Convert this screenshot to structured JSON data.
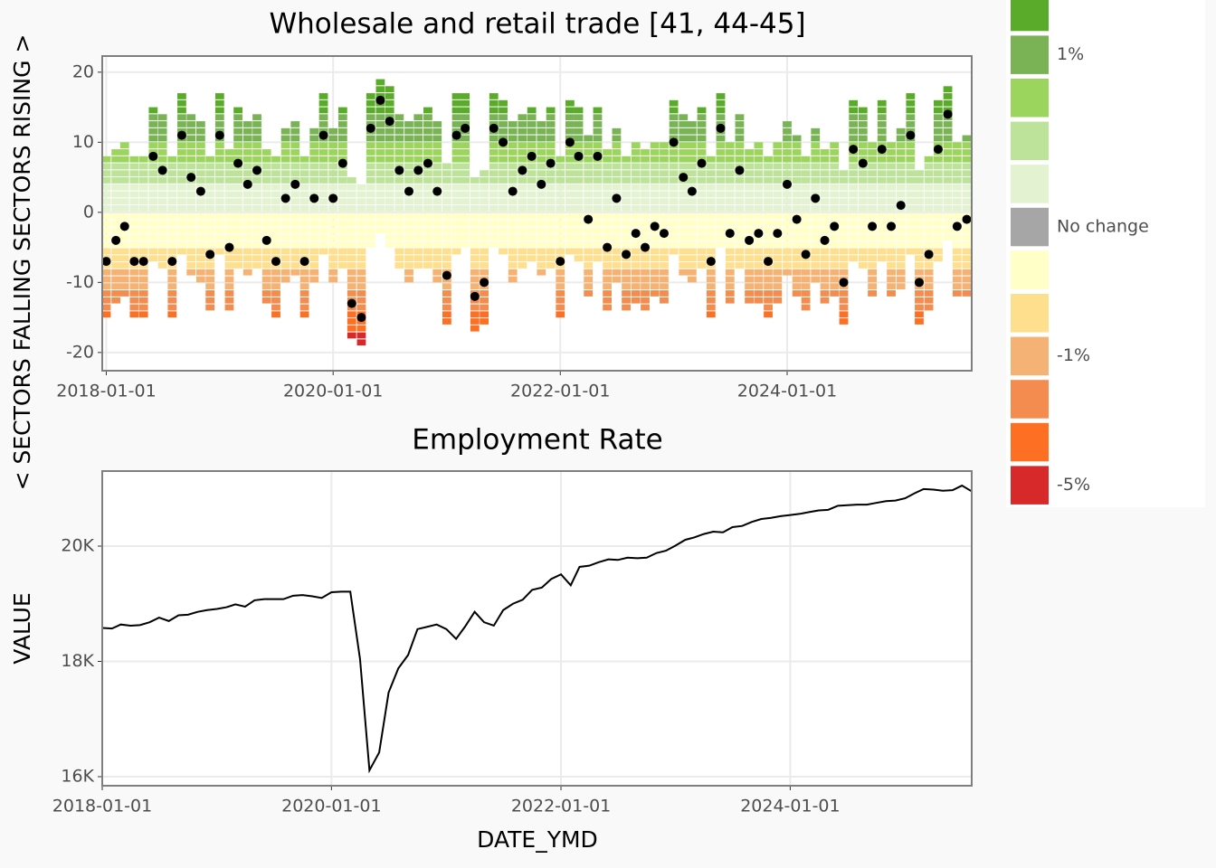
{
  "chart_data": [
    {
      "type": "tile",
      "title": "Wholesale and retail trade [41, 44-45]",
      "ylabel": "< SECTORS FALLING     SECTORS RISING >",
      "x": [
        "2018-01-01",
        "2018-02-01",
        "2018-03-01",
        "2018-04-01",
        "2018-05-01",
        "2018-06-01",
        "2018-07-01",
        "2018-08-01",
        "2018-09-01",
        "2018-10-01",
        "2018-11-01",
        "2018-12-01",
        "2019-01-01",
        "2019-02-01",
        "2019-03-01",
        "2019-04-01",
        "2019-05-01",
        "2019-06-01",
        "2019-07-01",
        "2019-08-01",
        "2019-09-01",
        "2019-10-01",
        "2019-11-01",
        "2019-12-01",
        "2020-01-01",
        "2020-02-01",
        "2020-03-01",
        "2020-04-01",
        "2020-05-01",
        "2020-06-01",
        "2020-07-01",
        "2020-08-01",
        "2020-09-01",
        "2020-10-01",
        "2020-11-01",
        "2020-12-01",
        "2021-01-01",
        "2021-02-01",
        "2021-03-01",
        "2021-04-01",
        "2021-05-01",
        "2021-06-01",
        "2021-07-01",
        "2021-08-01",
        "2021-09-01",
        "2021-10-01",
        "2021-11-01",
        "2021-12-01",
        "2022-01-01",
        "2022-02-01",
        "2022-03-01",
        "2022-04-01",
        "2022-05-01",
        "2022-06-01",
        "2022-07-01",
        "2022-08-01",
        "2022-09-01",
        "2022-10-01",
        "2022-11-01",
        "2022-12-01",
        "2023-01-01",
        "2023-02-01",
        "2023-03-01",
        "2023-04-01",
        "2023-05-01",
        "2023-06-01",
        "2023-07-01",
        "2023-08-01",
        "2023-09-01",
        "2023-10-01",
        "2023-11-01",
        "2023-12-01",
        "2024-01-01",
        "2024-02-01",
        "2024-03-01",
        "2024-04-01",
        "2024-05-01",
        "2024-06-01",
        "2024-07-01",
        "2024-08-01",
        "2024-09-01",
        "2024-10-01",
        "2024-11-01",
        "2024-12-01",
        "2025-01-01",
        "2025-02-01",
        "2025-03-01",
        "2025-04-01",
        "2025-05-01",
        "2025-06-01",
        "2025-07-01",
        "2025-08-01"
      ],
      "rising": [
        8,
        9,
        10,
        8,
        8,
        15,
        14,
        8,
        17,
        14,
        13,
        8,
        17,
        9,
        15,
        13,
        14,
        9,
        8,
        12,
        13,
        8,
        12,
        17,
        12,
        15,
        5,
        4,
        17,
        19,
        18,
        14,
        13,
        14,
        15,
        13,
        7,
        17,
        17,
        5,
        6,
        17,
        16,
        13,
        14,
        15,
        13,
        15,
        8,
        16,
        15,
        11,
        15,
        9,
        12,
        8,
        10,
        9,
        10,
        10,
        16,
        14,
        13,
        15,
        8,
        17,
        10,
        14,
        9,
        10,
        8,
        10,
        13,
        11,
        8,
        12,
        9,
        10,
        6,
        16,
        15,
        10,
        16,
        10,
        12,
        17,
        6,
        8,
        16,
        18,
        10,
        11
      ],
      "falling": [
        -15,
        -13,
        -12,
        -15,
        -15,
        -7,
        -8,
        -15,
        -6,
        -9,
        -10,
        -14,
        -6,
        -14,
        -8,
        -9,
        -8,
        -13,
        -15,
        -10,
        -9,
        -15,
        -10,
        -6,
        -10,
        -8,
        -18,
        -19,
        -5,
        -3,
        -5,
        -8,
        -10,
        -8,
        -8,
        -10,
        -16,
        -6,
        -5,
        -17,
        -16,
        -5,
        -6,
        -10,
        -8,
        -7,
        -9,
        -8,
        -15,
        -6,
        -7,
        -12,
        -7,
        -14,
        -10,
        -14,
        -13,
        -14,
        -12,
        -13,
        -6,
        -9,
        -10,
        -8,
        -15,
        -5,
        -13,
        -8,
        -13,
        -13,
        -15,
        -13,
        -9,
        -12,
        -14,
        -10,
        -13,
        -12,
        -16,
        -7,
        -8,
        -12,
        -7,
        -12,
        -11,
        -6,
        -16,
        -14,
        -7,
        -4,
        -12,
        -12
      ],
      "net": [
        -7,
        -4,
        -2,
        -7,
        -7,
        8,
        6,
        -7,
        11,
        5,
        3,
        -6,
        11,
        -5,
        7,
        4,
        6,
        -4,
        -7,
        2,
        4,
        -7,
        2,
        11,
        2,
        7,
        -13,
        -15,
        12,
        16,
        13,
        6,
        3,
        6,
        7,
        3,
        -9,
        11,
        12,
        -12,
        -10,
        12,
        10,
        3,
        6,
        8,
        4,
        7,
        -7,
        10,
        8,
        -1,
        8,
        -5,
        2,
        -6,
        -3,
        -5,
        -2,
        -3,
        10,
        5,
        3,
        7,
        -7,
        12,
        -3,
        6,
        -4,
        -3,
        -7,
        -3,
        4,
        -1,
        -6,
        2,
        -4,
        -2,
        -10,
        9,
        7,
        -2,
        9,
        -2,
        1,
        11,
        -10,
        -6,
        9,
        14,
        -2,
        -1
      ],
      "xlim": [
        "2017-12-19",
        "2025-08-17"
      ],
      "xticks": [
        "2018-01-01",
        "2020-01-01",
        "2022-01-01",
        "2024-01-01"
      ],
      "ylim": [
        -22.6,
        22.3
      ],
      "yticks": [
        -20,
        -10,
        0,
        10,
        20
      ],
      "grid": true,
      "legend": [
        {
          "color": "#5aab2a"
        },
        {
          "color": "#7ab356",
          "label": "1%"
        },
        {
          "color": "#9cd55e"
        },
        {
          "color": "#bde29a"
        },
        {
          "color": "#e3f2d0"
        },
        {
          "color": "#a6a6a6",
          "label": "No change"
        },
        {
          "color": "#ffffc8"
        },
        {
          "color": "#fddf8e"
        },
        {
          "color": "#f4b274",
          "label": "-1%"
        },
        {
          "color": "#f38c4e"
        },
        {
          "color": "#fd6f22"
        },
        {
          "color": "#d7282a",
          "label": "-5%"
        }
      ]
    },
    {
      "type": "line",
      "title": "Employment Rate",
      "xlabel": "DATE_YMD",
      "ylabel": "VALUE",
      "color": "#000000",
      "x": [
        "2018-01-01",
        "2018-02-01",
        "2018-03-01",
        "2018-04-01",
        "2018-05-01",
        "2018-06-01",
        "2018-07-01",
        "2018-08-01",
        "2018-09-01",
        "2018-10-01",
        "2018-11-01",
        "2018-12-01",
        "2019-01-01",
        "2019-02-01",
        "2019-03-01",
        "2019-04-01",
        "2019-05-01",
        "2019-06-01",
        "2019-07-01",
        "2019-08-01",
        "2019-09-01",
        "2019-10-01",
        "2019-11-01",
        "2019-12-01",
        "2020-01-01",
        "2020-02-01",
        "2020-03-01",
        "2020-04-01",
        "2020-05-01",
        "2020-06-01",
        "2020-07-01",
        "2020-08-01",
        "2020-09-01",
        "2020-10-01",
        "2020-11-01",
        "2020-12-01",
        "2021-01-01",
        "2021-02-01",
        "2021-03-01",
        "2021-04-01",
        "2021-05-01",
        "2021-06-01",
        "2021-07-01",
        "2021-08-01",
        "2021-09-01",
        "2021-10-01",
        "2021-11-01",
        "2021-12-01",
        "2022-01-01",
        "2022-02-01",
        "2022-03-01",
        "2022-04-01",
        "2022-05-01",
        "2022-06-01",
        "2022-07-01",
        "2022-08-01",
        "2022-09-01",
        "2022-10-01",
        "2022-11-01",
        "2022-12-01",
        "2023-01-01",
        "2023-02-01",
        "2023-03-01",
        "2023-04-01",
        "2023-05-01",
        "2023-06-01",
        "2023-07-01",
        "2023-08-01",
        "2023-09-01",
        "2023-10-01",
        "2023-11-01",
        "2023-12-01",
        "2024-01-01",
        "2024-02-01",
        "2024-03-01",
        "2024-04-01",
        "2024-05-01",
        "2024-06-01",
        "2024-07-01",
        "2024-08-01",
        "2024-09-01",
        "2024-10-01",
        "2024-11-01",
        "2024-12-01",
        "2025-01-01",
        "2025-02-01",
        "2025-03-01",
        "2025-04-01",
        "2025-05-01",
        "2025-06-01",
        "2025-07-01",
        "2025-08-01"
      ],
      "values": [
        18580,
        18570,
        18640,
        18620,
        18630,
        18680,
        18760,
        18700,
        18800,
        18810,
        18860,
        18890,
        18910,
        18940,
        18990,
        18950,
        19060,
        19080,
        19080,
        19080,
        19140,
        19150,
        19130,
        19100,
        19200,
        19210,
        19210,
        18040,
        16110,
        16420,
        17460,
        17880,
        18110,
        18560,
        18600,
        18640,
        18560,
        18390,
        18600,
        18860,
        18680,
        18620,
        18890,
        19000,
        19070,
        19240,
        19280,
        19430,
        19510,
        19320,
        19640,
        19660,
        19720,
        19770,
        19760,
        19800,
        19790,
        19800,
        19880,
        19920,
        20010,
        20110,
        20150,
        20210,
        20250,
        20240,
        20330,
        20350,
        20420,
        20470,
        20490,
        20520,
        20540,
        20560,
        20590,
        20620,
        20630,
        20700,
        20710,
        20720,
        20720,
        20750,
        20780,
        20790,
        20830,
        20920,
        20990,
        20980,
        20960,
        20970,
        21050,
        20950
      ],
      "xlim": [
        "2018-01-01",
        "2025-08-01"
      ],
      "xticks": [
        "2018-01-01",
        "2020-01-01",
        "2022-01-01",
        "2024-01-01"
      ],
      "ylim": [
        15843,
        21302
      ],
      "yticks": [
        {
          "value": 16000,
          "label": "16K"
        },
        {
          "value": 18000,
          "label": "18K"
        },
        {
          "value": 20000,
          "label": "20K"
        }
      ],
      "grid": true
    }
  ]
}
